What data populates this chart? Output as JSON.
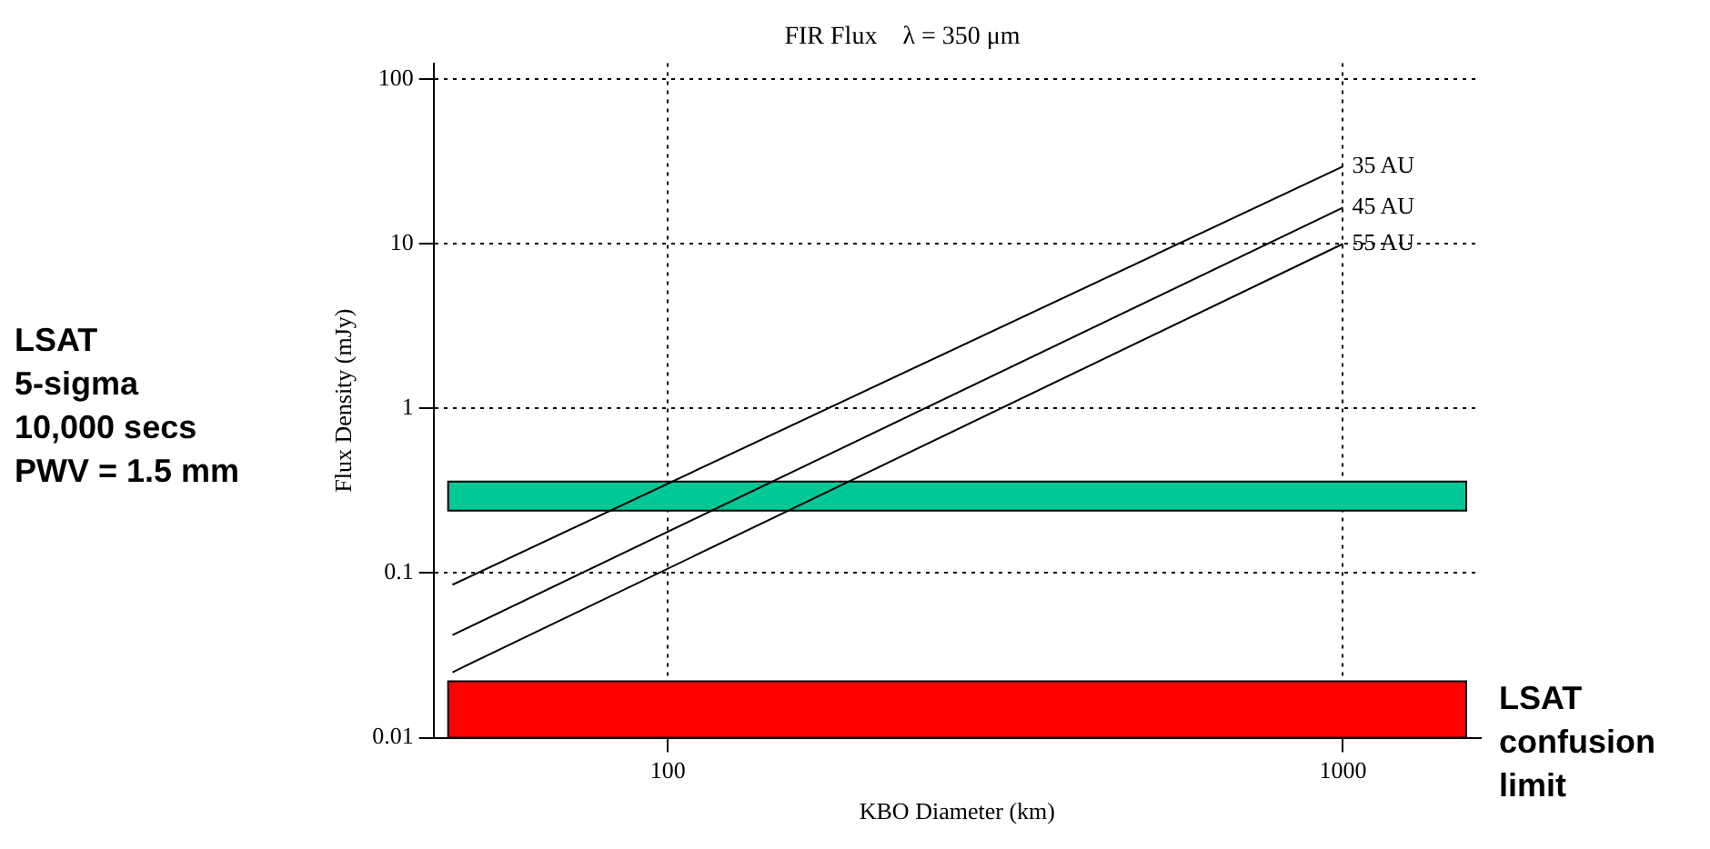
{
  "chart_data": {
    "type": "line",
    "title": "FIR Flux    λ = 350 μm",
    "xlabel": "KBO Diameter (km)",
    "ylabel": "Flux Density (mJy)",
    "log": "xy",
    "xlim": [
      45,
      1600
    ],
    "ylim": [
      0.01,
      125
    ],
    "xticks": [
      100,
      1000
    ],
    "yticks": [
      0.01,
      0.1,
      1,
      10,
      100
    ],
    "grid": true,
    "legend": false,
    "marker": "none",
    "line_style": "solid",
    "x": [
      48,
      1000
    ],
    "series": [
      {
        "name": "35 AU",
        "color": "#000000",
        "values": [
          0.085,
          29.5
        ]
      },
      {
        "name": "45 AU",
        "color": "#000000",
        "values": [
          0.042,
          16.6
        ]
      },
      {
        "name": "55 AU",
        "color": "#000000",
        "values": [
          0.025,
          10
        ]
      }
    ],
    "bands": [
      {
        "axis": "y",
        "from": 0.24,
        "to": 0.36,
        "color": "#00c896"
      },
      {
        "axis": "y",
        "from": 0.01,
        "to": 0.022,
        "color": "#ff0000"
      }
    ],
    "annotations": [
      "LSAT\n5-sigma\n10,000 secs\nPWV = 1.5 mm",
      "LSAT\nconfusion\nlimit"
    ]
  }
}
